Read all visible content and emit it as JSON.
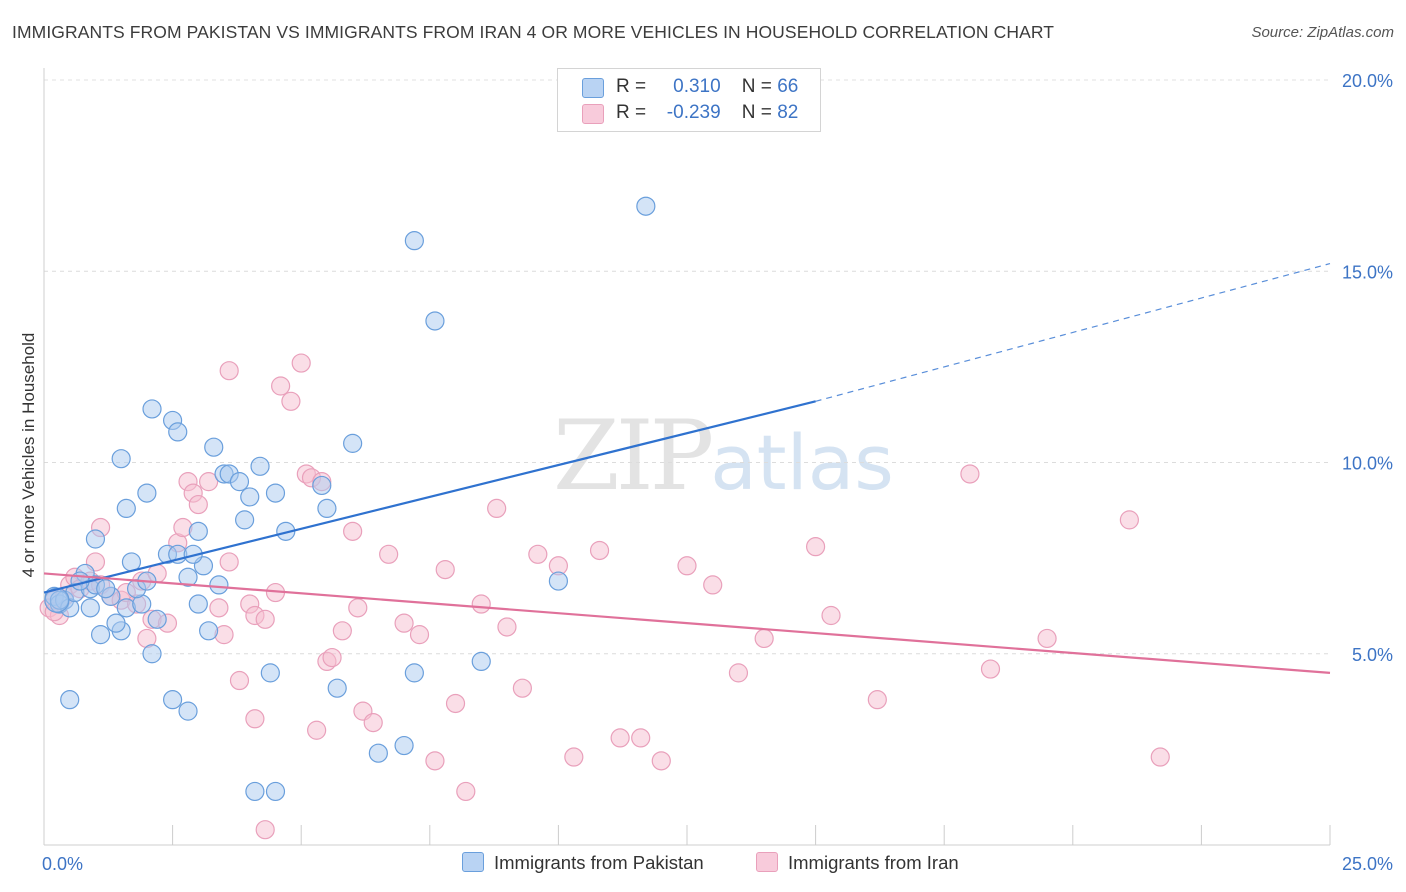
{
  "header": {
    "title": "IMMIGRANTS FROM PAKISTAN VS IMMIGRANTS FROM IRAN 4 OR MORE VEHICLES IN HOUSEHOLD CORRELATION CHART",
    "source": "Source: ZipAtlas.com"
  },
  "watermark": {
    "zip": "ZIP",
    "atlas": "atlas"
  },
  "legend": {
    "rows": [
      {
        "r_label": "R =",
        "r_value": "0.310",
        "n_label": "N =",
        "n_value": "66",
        "color": "#7aaee8"
      },
      {
        "r_label": "R =",
        "r_value": "-0.239",
        "n_label": "N =",
        "n_value": "82",
        "color": "#f1a6c0"
      }
    ]
  },
  "chart_data": {
    "type": "scatter",
    "title": "IMMIGRANTS FROM PAKISTAN VS IMMIGRANTS FROM IRAN 4 OR MORE VEHICLES IN HOUSEHOLD CORRELATION CHART",
    "ylabel": "4 or more Vehicles in Household",
    "xlabel": "",
    "xlim": [
      0,
      25
    ],
    "ylim": [
      0,
      20
    ],
    "x_tick_labels": [
      "0.0%",
      "25.0%"
    ],
    "y_ticks": [
      5,
      10,
      15,
      20
    ],
    "y_tick_labels": [
      "5.0%",
      "10.0%",
      "15.0%",
      "20.0%"
    ],
    "grid": true,
    "legend_position": "top-center",
    "colors": {
      "pakistan_fill": "#a9c9f0",
      "pakistan_stroke": "#6a9fdc",
      "pakistan_line": "#2f72cf",
      "iran_fill": "#f5bdd0",
      "iran_stroke": "#e9a0bb",
      "iran_line": "#e0719a"
    },
    "series": [
      {
        "name": "Immigrants from Pakistan",
        "r": 0.31,
        "n": 66,
        "trend": {
          "x0": 0,
          "y0": 6.6,
          "x1": 15,
          "y1": 11.6,
          "x_dashed_end": 25,
          "y_dashed_end": 15.2
        },
        "points": [
          [
            0.2,
            6.5
          ],
          [
            0.3,
            6.3
          ],
          [
            0.4,
            6.4
          ],
          [
            0.5,
            6.2
          ],
          [
            0.6,
            6.6
          ],
          [
            0.8,
            7.1
          ],
          [
            0.9,
            6.7
          ],
          [
            1.0,
            6.8
          ],
          [
            0.7,
            6.9
          ],
          [
            0.3,
            6.4
          ],
          [
            1.3,
            6.5
          ],
          [
            1.6,
            6.2
          ],
          [
            1.9,
            6.3
          ],
          [
            2.1,
            5.0
          ],
          [
            1.2,
            6.7
          ],
          [
            0.9,
            6.2
          ],
          [
            1.8,
            6.7
          ],
          [
            1.5,
            5.6
          ],
          [
            2.0,
            6.9
          ],
          [
            2.2,
            5.9
          ],
          [
            0.5,
            3.8
          ],
          [
            1.1,
            5.5
          ],
          [
            1.4,
            5.8
          ],
          [
            1.7,
            7.4
          ],
          [
            2.4,
            7.6
          ],
          [
            2.6,
            7.6
          ],
          [
            2.8,
            7.0
          ],
          [
            3.0,
            6.3
          ],
          [
            3.1,
            7.3
          ],
          [
            3.2,
            5.6
          ],
          [
            3.4,
            6.8
          ],
          [
            3.5,
            9.7
          ],
          [
            3.6,
            9.7
          ],
          [
            3.8,
            9.5
          ],
          [
            4.0,
            9.1
          ],
          [
            4.2,
            9.9
          ],
          [
            2.9,
            7.6
          ],
          [
            3.0,
            8.2
          ],
          [
            3.9,
            8.5
          ],
          [
            4.5,
            9.2
          ],
          [
            4.7,
            8.2
          ],
          [
            5.4,
            9.4
          ],
          [
            5.5,
            8.8
          ],
          [
            6.0,
            10.5
          ],
          [
            2.1,
            11.4
          ],
          [
            2.5,
            11.1
          ],
          [
            2.6,
            10.8
          ],
          [
            3.3,
            10.4
          ],
          [
            1.5,
            10.1
          ],
          [
            1.6,
            8.8
          ],
          [
            2.0,
            9.2
          ],
          [
            2.5,
            3.8
          ],
          [
            2.8,
            3.5
          ],
          [
            4.1,
            1.4
          ],
          [
            4.5,
            1.4
          ],
          [
            4.4,
            4.5
          ],
          [
            5.7,
            4.1
          ],
          [
            6.5,
            2.4
          ],
          [
            7.0,
            2.6
          ],
          [
            7.2,
            4.5
          ],
          [
            7.6,
            13.7
          ],
          [
            8.5,
            4.8
          ],
          [
            10.0,
            6.9
          ],
          [
            11.7,
            16.7
          ],
          [
            7.2,
            15.8
          ],
          [
            1.0,
            8.0
          ]
        ]
      },
      {
        "name": "Immigrants from Iran",
        "r": -0.239,
        "n": 82,
        "trend": {
          "x0": 0,
          "y0": 7.1,
          "x1": 25,
          "y1": 4.5
        },
        "points": [
          [
            0.1,
            6.2
          ],
          [
            0.2,
            6.4
          ],
          [
            0.3,
            6.0
          ],
          [
            0.4,
            6.5
          ],
          [
            0.5,
            6.8
          ],
          [
            0.6,
            7.0
          ],
          [
            0.7,
            6.7
          ],
          [
            0.9,
            6.9
          ],
          [
            1.0,
            7.4
          ],
          [
            1.1,
            6.8
          ],
          [
            1.3,
            6.5
          ],
          [
            1.5,
            6.4
          ],
          [
            1.6,
            6.6
          ],
          [
            1.8,
            6.3
          ],
          [
            1.9,
            6.9
          ],
          [
            2.0,
            5.4
          ],
          [
            2.1,
            5.9
          ],
          [
            2.2,
            7.1
          ],
          [
            2.4,
            5.8
          ],
          [
            2.6,
            7.9
          ],
          [
            2.7,
            8.3
          ],
          [
            2.8,
            9.5
          ],
          [
            2.9,
            9.2
          ],
          [
            3.0,
            8.9
          ],
          [
            3.2,
            9.5
          ],
          [
            3.4,
            6.2
          ],
          [
            3.5,
            5.5
          ],
          [
            3.6,
            7.4
          ],
          [
            3.8,
            4.3
          ],
          [
            4.0,
            6.3
          ],
          [
            4.1,
            6.0
          ],
          [
            4.3,
            5.9
          ],
          [
            4.5,
            6.6
          ],
          [
            4.6,
            12.0
          ],
          [
            4.8,
            11.6
          ],
          [
            5.0,
            12.6
          ],
          [
            5.1,
            9.7
          ],
          [
            5.2,
            9.6
          ],
          [
            5.4,
            9.5
          ],
          [
            5.5,
            4.8
          ],
          [
            5.6,
            4.9
          ],
          [
            5.8,
            5.6
          ],
          [
            6.0,
            8.2
          ],
          [
            6.2,
            3.5
          ],
          [
            6.4,
            3.2
          ],
          [
            6.7,
            7.6
          ],
          [
            7.0,
            5.8
          ],
          [
            7.3,
            5.5
          ],
          [
            7.6,
            2.2
          ],
          [
            7.8,
            7.2
          ],
          [
            8.0,
            3.7
          ],
          [
            8.2,
            1.4
          ],
          [
            8.5,
            6.3
          ],
          [
            8.8,
            8.8
          ],
          [
            9.0,
            5.7
          ],
          [
            9.3,
            4.1
          ],
          [
            9.6,
            7.6
          ],
          [
            10.0,
            7.3
          ],
          [
            10.3,
            2.3
          ],
          [
            10.8,
            7.7
          ],
          [
            11.2,
            2.8
          ],
          [
            11.6,
            2.8
          ],
          [
            12.0,
            2.2
          ],
          [
            12.5,
            7.3
          ],
          [
            13.0,
            6.8
          ],
          [
            13.5,
            4.5
          ],
          [
            14.0,
            5.4
          ],
          [
            15.0,
            7.8
          ],
          [
            15.3,
            6.0
          ],
          [
            16.2,
            3.8
          ],
          [
            18.0,
            9.7
          ],
          [
            18.4,
            4.6
          ],
          [
            19.5,
            5.4
          ],
          [
            21.1,
            8.5
          ],
          [
            21.7,
            2.3
          ],
          [
            4.3,
            0.4
          ],
          [
            4.1,
            3.3
          ],
          [
            1.1,
            8.3
          ],
          [
            0.2,
            6.1
          ],
          [
            3.6,
            12.4
          ],
          [
            5.3,
            3.0
          ],
          [
            6.1,
            6.2
          ]
        ]
      }
    ]
  }
}
